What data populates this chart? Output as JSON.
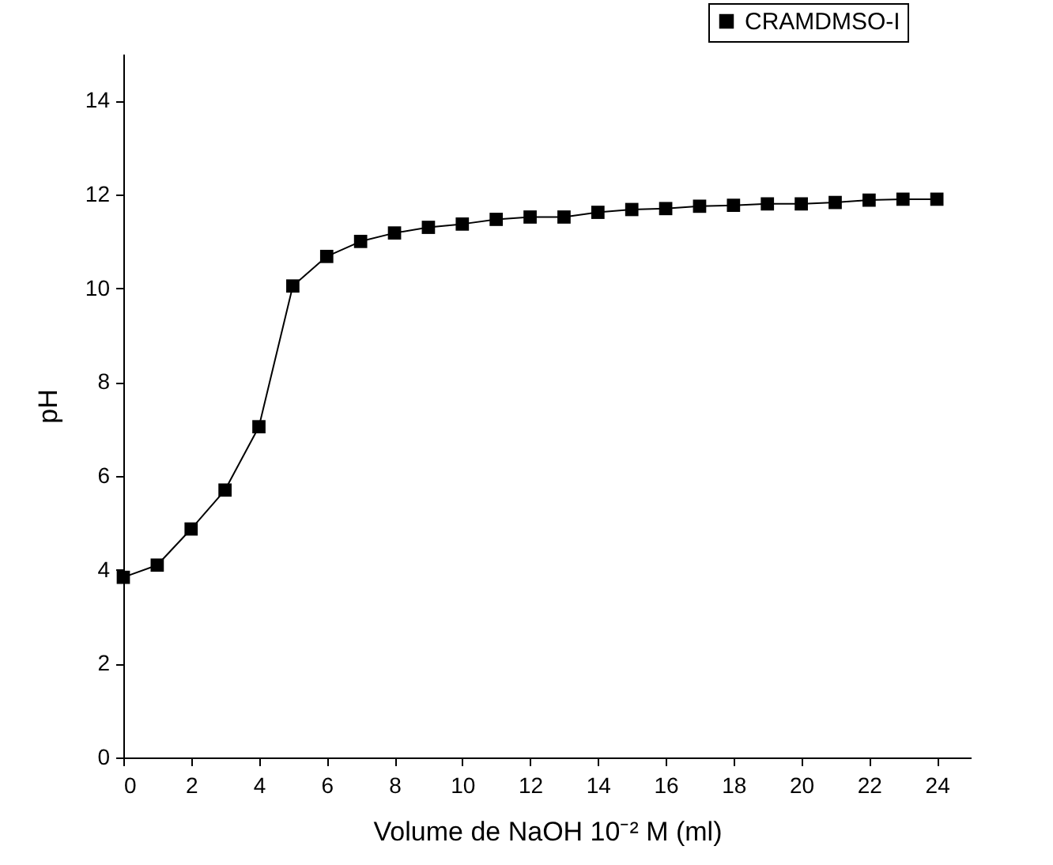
{
  "chart_data": {
    "type": "line",
    "xlabel": "Volume de NaOH 10⁻² M (ml)",
    "ylabel": "pH",
    "x": [
      0,
      1,
      2,
      3,
      4,
      5,
      6,
      7,
      8,
      9,
      10,
      11,
      12,
      13,
      14,
      15,
      16,
      17,
      18,
      19,
      20,
      21,
      22,
      23,
      24
    ],
    "series": [
      {
        "name": "CRAMDMSO-I",
        "color": "#000000",
        "values": [
          3.84,
          4.1,
          4.87,
          5.7,
          7.05,
          10.05,
          10.68,
          11.0,
          11.18,
          11.3,
          11.37,
          11.47,
          11.52,
          11.52,
          11.62,
          11.68,
          11.7,
          11.75,
          11.77,
          11.8,
          11.8,
          11.83,
          11.88,
          11.9,
          11.9
        ]
      }
    ],
    "xlim": [
      0,
      25
    ],
    "xticks": [
      0,
      2,
      4,
      6,
      8,
      10,
      12,
      14,
      16,
      18,
      20,
      22,
      24
    ],
    "ylim": [
      0,
      15
    ],
    "yticks": [
      0,
      2,
      4,
      6,
      8,
      10,
      12,
      14
    ],
    "marker": "square",
    "line_style": "solid",
    "grid": false,
    "legend": "top right"
  }
}
